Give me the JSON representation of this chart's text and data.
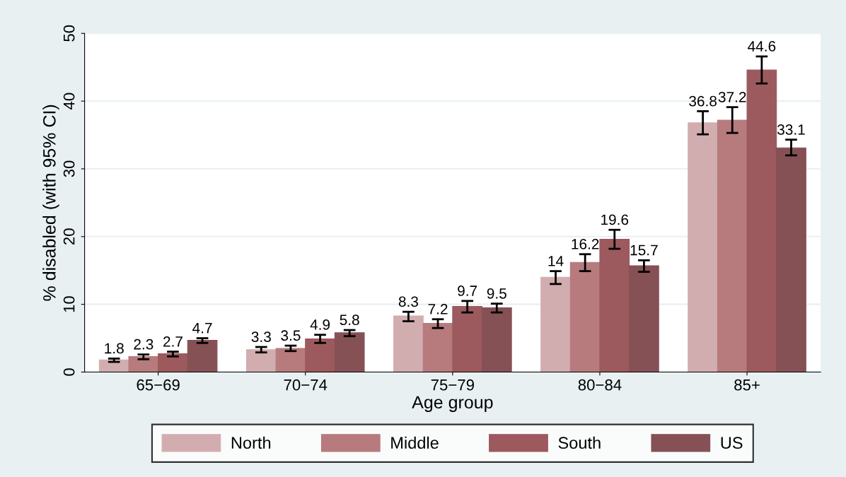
{
  "chart_data": {
    "type": "bar",
    "xlabel": "Age group",
    "ylabel": "% disabled (with 95% CI)",
    "categories": [
      "65−69",
      "70−74",
      "75−79",
      "80−84",
      "85+"
    ],
    "series": [
      {
        "name": "North",
        "color": "#d2adb0",
        "values": [
          1.8,
          3.3,
          8.3,
          14,
          36.8
        ],
        "errors": [
          [
            1.5,
            2.0
          ],
          [
            2.9,
            3.7
          ],
          [
            7.5,
            8.9
          ],
          [
            13.0,
            14.9
          ],
          [
            35.1,
            38.5
          ]
        ]
      },
      {
        "name": "Middle",
        "color": "#b77b7d",
        "values": [
          2.3,
          3.5,
          7.2,
          16.2,
          37.2
        ],
        "errors": [
          [
            1.9,
            2.6
          ],
          [
            3.1,
            3.9
          ],
          [
            6.5,
            7.8
          ],
          [
            14.9,
            17.4
          ],
          [
            35.3,
            39.1
          ]
        ]
      },
      {
        "name": "South",
        "color": "#9c5a5e",
        "values": [
          2.7,
          4.9,
          9.7,
          19.6,
          44.6
        ],
        "errors": [
          [
            2.3,
            3.0
          ],
          [
            4.3,
            5.5
          ],
          [
            8.8,
            10.5
          ],
          [
            18.2,
            21.0
          ],
          [
            42.6,
            46.6
          ]
        ]
      },
      {
        "name": "US",
        "color": "#855155",
        "values": [
          4.7,
          5.8,
          9.5,
          15.7,
          33.1
        ],
        "errors": [
          [
            4.3,
            5.0
          ],
          [
            5.3,
            6.2
          ],
          [
            8.8,
            10.1
          ],
          [
            14.8,
            16.5
          ],
          [
            32.0,
            34.3
          ]
        ]
      }
    ],
    "ylim": [
      0,
      50
    ],
    "yticks": [
      0,
      10,
      20,
      30,
      40,
      50
    ],
    "grid": "y",
    "legend": "bottom",
    "data_labels": true
  }
}
